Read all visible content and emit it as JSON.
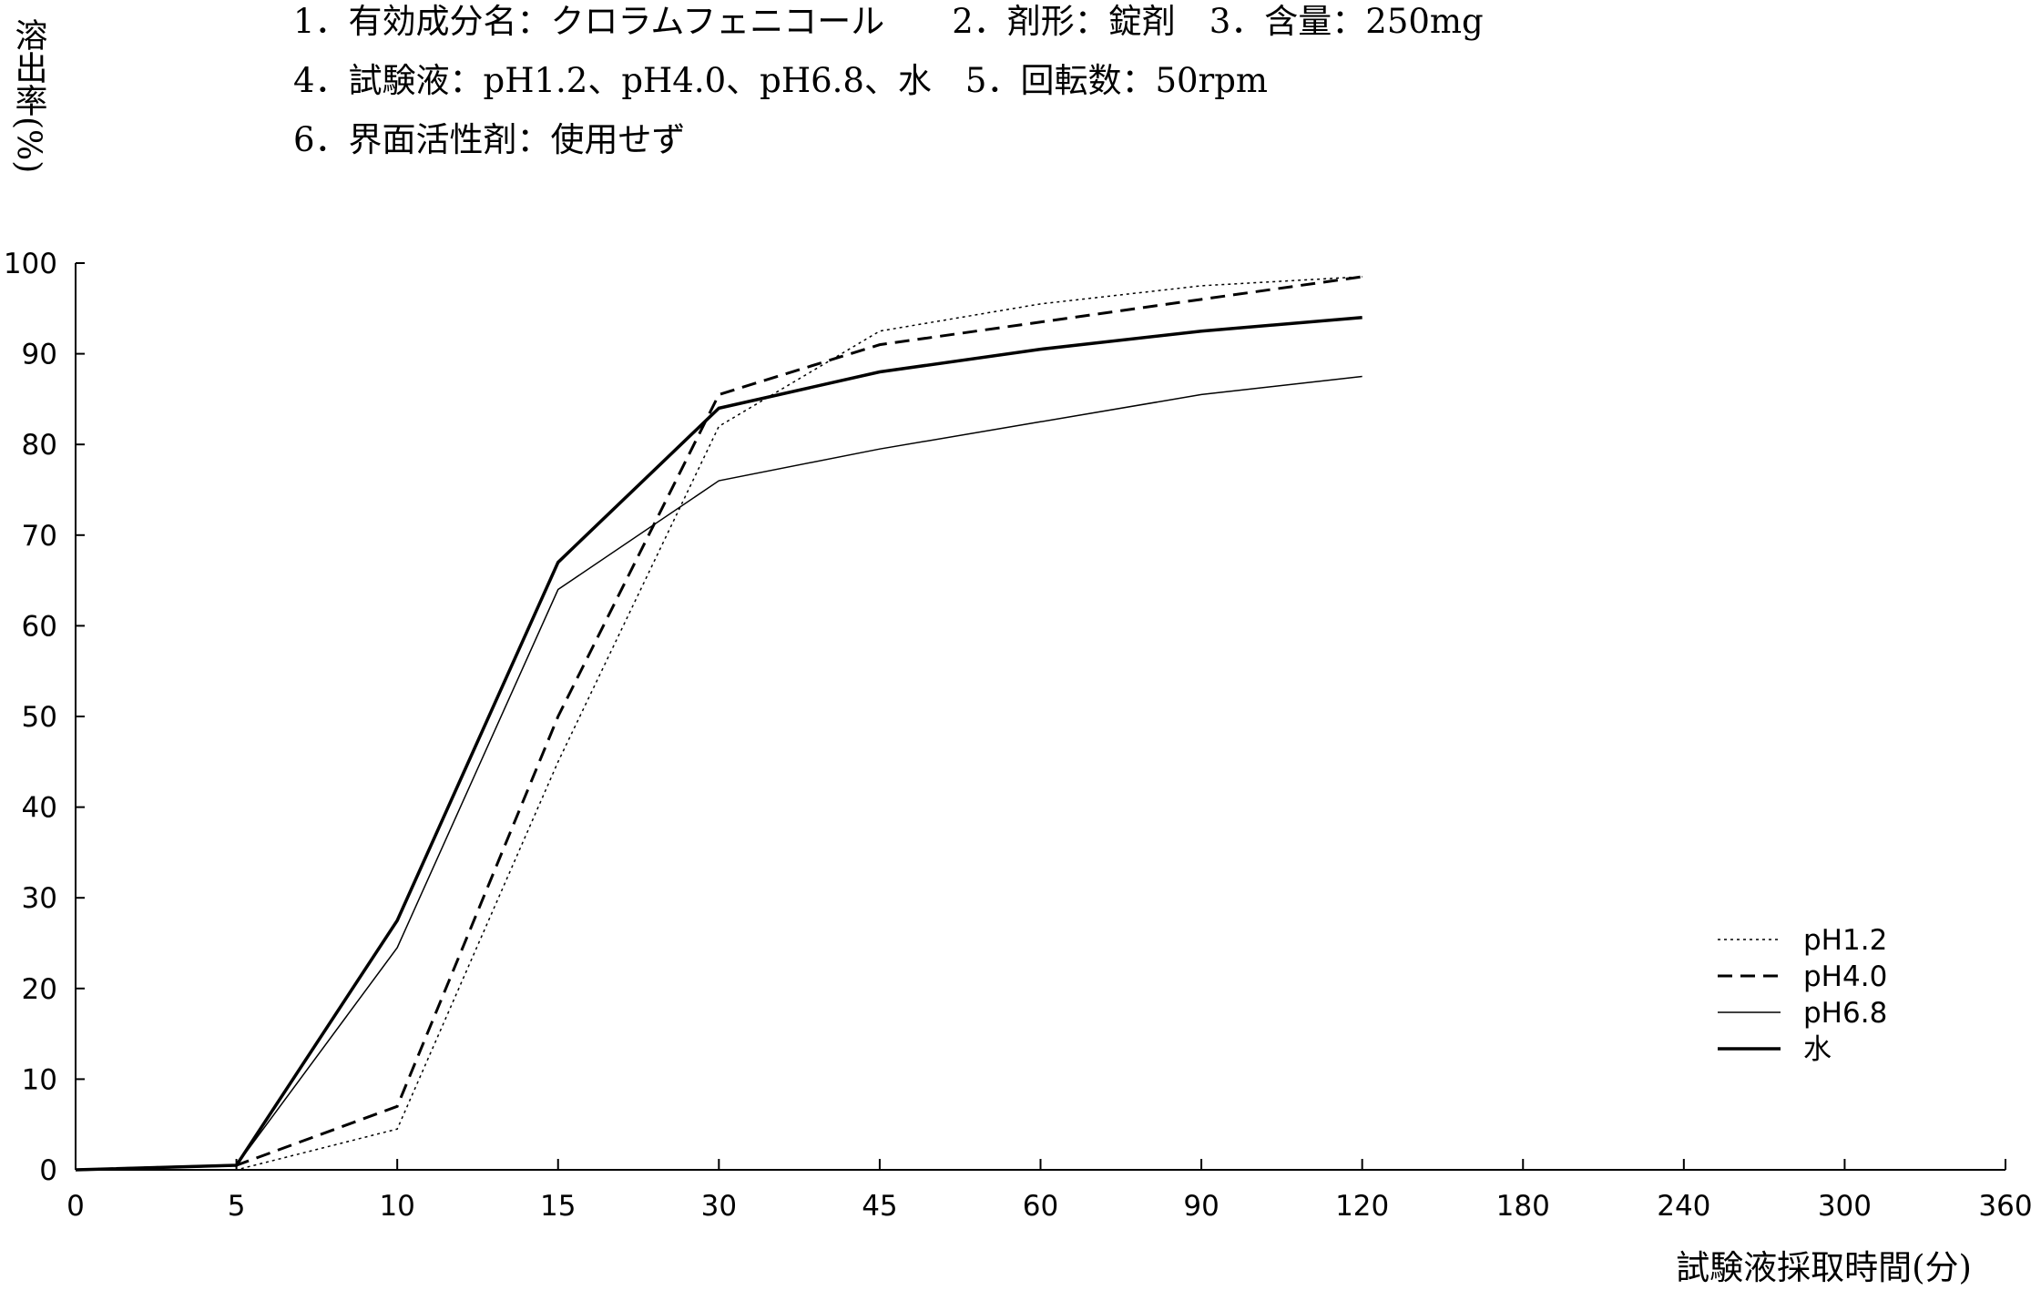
{
  "chart_data": {
    "type": "line",
    "notes": [
      "1．有効成分名：クロラムフェニコール　　2．剤形：錠剤　3．含量：250mg",
      "4．試験液：pH1.2、pH4.0、pH6.8、水　5．回転数：50rpm",
      "6．界面活性剤：使用せず"
    ],
    "y_label": "溶出率(%)",
    "x_label": "試験液採取時間(分)",
    "categories": [
      "0",
      "5",
      "10",
      "15",
      "30",
      "45",
      "60",
      "90",
      "120",
      "180",
      "240",
      "300",
      "360"
    ],
    "ylim": [
      0,
      100
    ],
    "yticks": [
      0,
      10,
      20,
      30,
      40,
      50,
      60,
      70,
      80,
      90,
      100
    ],
    "series": [
      {
        "name": "pH1.2",
        "color": "#000000",
        "style": "dotted",
        "width": 1.5,
        "values": [
          0,
          0,
          4.5,
          45,
          82,
          92.5,
          95.5,
          97.5,
          98.5,
          null,
          null,
          null,
          null
        ]
      },
      {
        "name": "pH4.0",
        "color": "#000000",
        "style": "dashed",
        "width": 3,
        "values": [
          0,
          0.5,
          7,
          50,
          85.5,
          91,
          93.5,
          96,
          98.5,
          null,
          null,
          null,
          null
        ]
      },
      {
        "name": "pH6.8",
        "color": "#000000",
        "style": "solid",
        "width": 1.5,
        "values": [
          0,
          0.5,
          24.5,
          64,
          76,
          79.5,
          82.5,
          85.5,
          87.5,
          null,
          null,
          null,
          null
        ]
      },
      {
        "name": "水",
        "color": "#000000",
        "style": "solid",
        "width": 3.5,
        "values": [
          0,
          0.5,
          27.5,
          67,
          84,
          88,
          90.5,
          92.5,
          94,
          null,
          null,
          null,
          null
        ]
      }
    ],
    "legend": "lower-right"
  }
}
